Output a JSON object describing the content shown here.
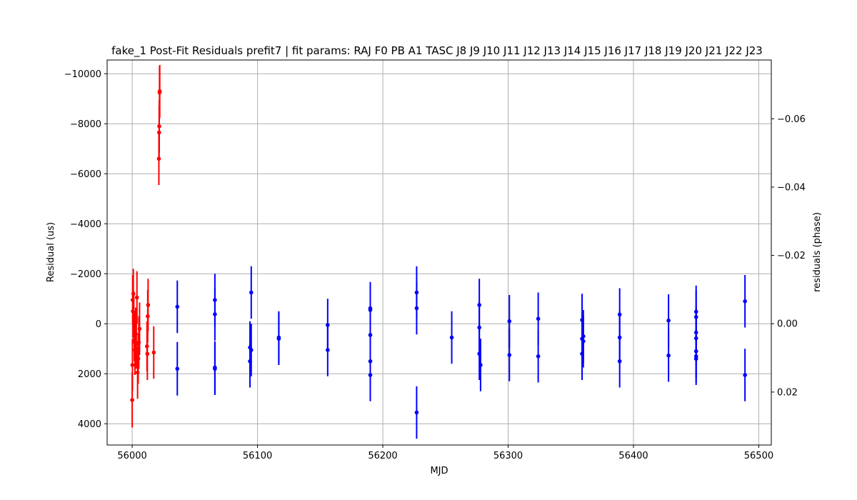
{
  "chart_data": {
    "type": "scatter",
    "title": "fake_1 Post-Fit Residuals prefit7 | fit params: RAJ F0 PB A1 TASC J8 J9 J10 J11 J12 J13 J14 J15 J16 J17 J18 J19 J20 J21 J22 J23",
    "xlabel": "MJD",
    "ylabel": "Residual (us)",
    "y2label": "residuals (phase)",
    "xlim": [
      55980,
      56510
    ],
    "ylim": [
      4850,
      -10550
    ],
    "y2lim": [
      0.0355,
      -0.0772
    ],
    "y_inverted": true,
    "grid": true,
    "xticks": [
      56000,
      56100,
      56200,
      56300,
      56400,
      56500
    ],
    "xtick_labels": [
      "56000",
      "56100",
      "56200",
      "56300",
      "56400",
      "56500"
    ],
    "yticks": [
      -10000,
      -8000,
      -6000,
      -4000,
      -2000,
      0,
      2000,
      4000
    ],
    "ytick_labels": [
      "−10000",
      "−8000",
      "−6000",
      "−4000",
      "−2000",
      "0",
      "2000",
      "4000"
    ],
    "y2ticks": [
      -0.06,
      -0.04,
      -0.02,
      0.0,
      0.02
    ],
    "y2tick_labels": [
      "−0.06",
      "−0.04",
      "−0.02",
      "0.00",
      "0.02"
    ],
    "series": [
      {
        "color": "#ff0000",
        "points": [
          {
            "x": 56000.0,
            "y": 3050,
            "err": 1100
          },
          {
            "x": 56000.2,
            "y": 1650,
            "err": 1050
          },
          {
            "x": 56000.4,
            "y": -950,
            "err": 1000
          },
          {
            "x": 56000.6,
            "y": -500,
            "err": 1050
          },
          {
            "x": 56000.9,
            "y": -1200,
            "err": 1000
          },
          {
            "x": 56001.3,
            "y": -250,
            "err": 1050
          },
          {
            "x": 56001.7,
            "y": 500,
            "err": 1000
          },
          {
            "x": 56002.2,
            "y": 1050,
            "err": 1000
          },
          {
            "x": 56002.8,
            "y": 400,
            "err": 1050
          },
          {
            "x": 56003.3,
            "y": 800,
            "err": 1000
          },
          {
            "x": 56003.8,
            "y": -1050,
            "err": 1050
          },
          {
            "x": 56004.3,
            "y": 1950,
            "err": 1050
          },
          {
            "x": 56004.8,
            "y": 1400,
            "err": 1000
          },
          {
            "x": 56005.3,
            "y": 750,
            "err": 1050
          },
          {
            "x": 56005.9,
            "y": 200,
            "err": 1050
          },
          {
            "x": 56011.8,
            "y": 900,
            "err": 1000
          },
          {
            "x": 56012.1,
            "y": 1200,
            "err": 1050
          },
          {
            "x": 56012.4,
            "y": -300,
            "err": 1050
          },
          {
            "x": 56012.7,
            "y": -750,
            "err": 1050
          },
          {
            "x": 56017.2,
            "y": 1150,
            "err": 1050
          },
          {
            "x": 56021.3,
            "y": -6600,
            "err": 1050
          },
          {
            "x": 56021.5,
            "y": -7650,
            "err": 1050
          },
          {
            "x": 56021.6,
            "y": -7900,
            "err": 1050
          },
          {
            "x": 56021.8,
            "y": -9250,
            "err": 1050
          },
          {
            "x": 56022.0,
            "y": -9300,
            "err": 1050
          }
        ]
      },
      {
        "color": "#0000ff",
        "points": [
          {
            "x": 56036,
            "y": -680,
            "err": 1050
          },
          {
            "x": 56036,
            "y": 1800,
            "err": 1070
          },
          {
            "x": 56066,
            "y": -950,
            "err": 1050
          },
          {
            "x": 56066,
            "y": -380,
            "err": 1050
          },
          {
            "x": 56066,
            "y": 1750,
            "err": 1050
          },
          {
            "x": 56066,
            "y": 1800,
            "err": 1050
          },
          {
            "x": 56094,
            "y": 950,
            "err": 1050
          },
          {
            "x": 56094,
            "y": 1500,
            "err": 1050
          },
          {
            "x": 56095,
            "y": 1050,
            "err": 1050
          },
          {
            "x": 56095,
            "y": -1250,
            "err": 1050
          },
          {
            "x": 56117,
            "y": 550,
            "err": 1050
          },
          {
            "x": 56117,
            "y": 600,
            "err": 1050
          },
          {
            "x": 56156,
            "y": 50,
            "err": 1050
          },
          {
            "x": 56156,
            "y": 1050,
            "err": 1050
          },
          {
            "x": 56190,
            "y": 450,
            "err": 1050
          },
          {
            "x": 56190,
            "y": -550,
            "err": 1050
          },
          {
            "x": 56190,
            "y": -620,
            "err": 1050
          },
          {
            "x": 56190,
            "y": 1500,
            "err": 1050
          },
          {
            "x": 56190,
            "y": 2050,
            "err": 1050
          },
          {
            "x": 56227,
            "y": -1250,
            "err": 1050
          },
          {
            "x": 56227,
            "y": -620,
            "err": 1050
          },
          {
            "x": 56227,
            "y": 3550,
            "err": 1050
          },
          {
            "x": 56255,
            "y": 550,
            "err": 1050
          },
          {
            "x": 56277,
            "y": -750,
            "err": 1050
          },
          {
            "x": 56277,
            "y": 150,
            "err": 1050
          },
          {
            "x": 56277,
            "y": 1200,
            "err": 1050
          },
          {
            "x": 56278,
            "y": 1650,
            "err": 1050
          },
          {
            "x": 56301,
            "y": -100,
            "err": 1050
          },
          {
            "x": 56301,
            "y": 1250,
            "err": 1050
          },
          {
            "x": 56324,
            "y": -200,
            "err": 1050
          },
          {
            "x": 56324,
            "y": 1300,
            "err": 1050
          },
          {
            "x": 56359,
            "y": -150,
            "err": 1050
          },
          {
            "x": 56359,
            "y": 600,
            "err": 1050
          },
          {
            "x": 56360,
            "y": 500,
            "err": 1050
          },
          {
            "x": 56360,
            "y": 700,
            "err": 1050
          },
          {
            "x": 56359,
            "y": 1200,
            "err": 1050
          },
          {
            "x": 56389,
            "y": -370,
            "err": 1050
          },
          {
            "x": 56389,
            "y": 550,
            "err": 1050
          },
          {
            "x": 56389,
            "y": 1500,
            "err": 1050
          },
          {
            "x": 56428,
            "y": -130,
            "err": 1050
          },
          {
            "x": 56428,
            "y": 1270,
            "err": 1050
          },
          {
            "x": 56450,
            "y": -480,
            "err": 1050
          },
          {
            "x": 56450,
            "y": -270,
            "err": 1050
          },
          {
            "x": 56450,
            "y": 350,
            "err": 1050
          },
          {
            "x": 56450,
            "y": 580,
            "err": 1050
          },
          {
            "x": 56450,
            "y": 1100,
            "err": 1050
          },
          {
            "x": 56450,
            "y": 1300,
            "err": 1050
          },
          {
            "x": 56450,
            "y": 1400,
            "err": 1050
          },
          {
            "x": 56489,
            "y": -900,
            "err": 1050
          },
          {
            "x": 56489,
            "y": 2050,
            "err": 1050
          }
        ]
      }
    ]
  }
}
